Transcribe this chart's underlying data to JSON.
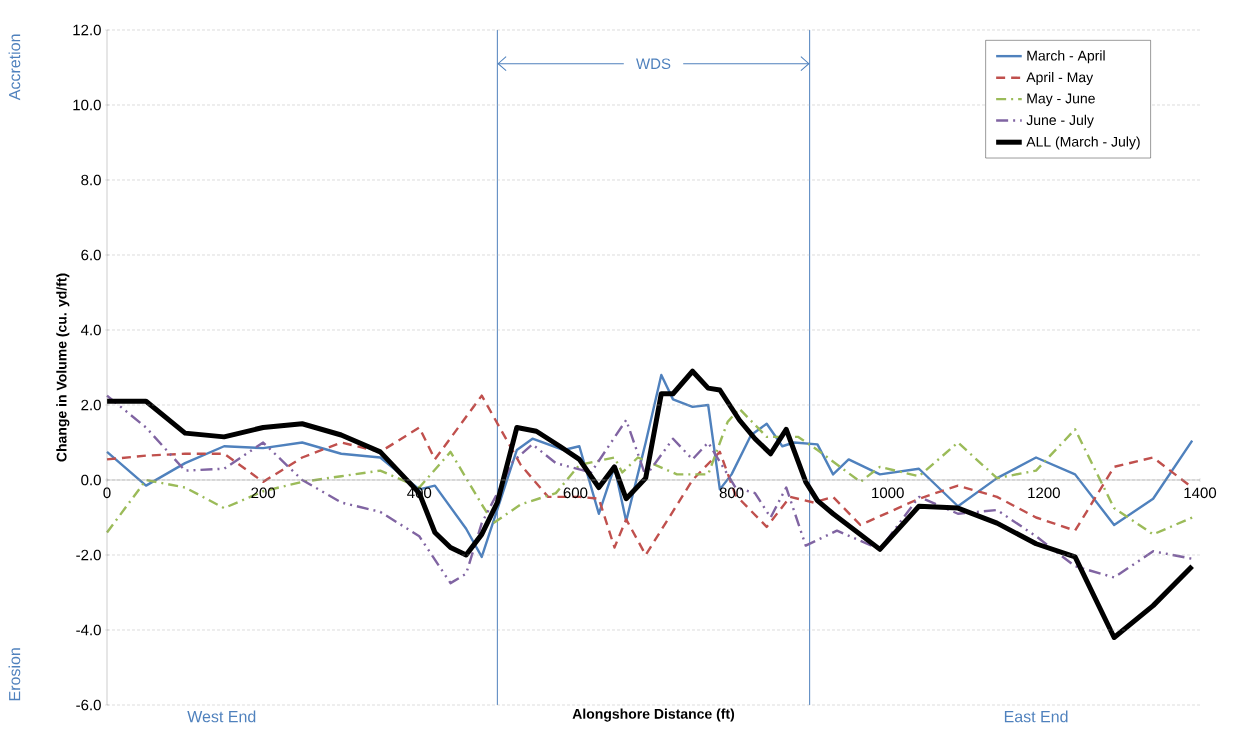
{
  "chart_data": {
    "type": "line",
    "xlabel": "Alongshore Distance (ft)",
    "ylabel": "Change in Volume (cu. yd/ft)",
    "xlim": [
      0,
      1400
    ],
    "xticks": [
      0,
      200,
      400,
      600,
      800,
      1000,
      1200,
      1400
    ],
    "ylim": [
      -6,
      12
    ],
    "yticks": [
      {
        "value": -6,
        "label": "-6.0"
      },
      {
        "value": -4,
        "label": "-4.0"
      },
      {
        "value": -2,
        "label": "-2.0"
      },
      {
        "value": 0,
        "label": "0.0"
      },
      {
        "value": 2,
        "label": "2.0"
      },
      {
        "value": 4,
        "label": "4.0"
      },
      {
        "value": 6,
        "label": "6.0"
      },
      {
        "value": 8,
        "label": "8.0"
      },
      {
        "value": 10,
        "label": "10.0"
      },
      {
        "value": 12,
        "label": "12.0"
      }
    ],
    "grid": "y",
    "legend": "top right",
    "marker": "none",
    "series": [
      {
        "name": "March - April",
        "color": "#4f81bd",
        "line_style": "solid",
        "x": [
          0,
          50,
          100,
          150,
          200,
          250,
          300,
          350,
          400,
          420,
          460,
          480,
          525,
          545,
          585,
          605,
          630,
          650,
          665,
          690,
          710,
          725,
          750,
          770,
          785,
          800,
          825,
          845,
          865,
          880,
          910,
          930,
          950,
          990,
          1040,
          1090,
          1140,
          1190,
          1240,
          1290,
          1340,
          1390
        ],
        "values": [
          0.75,
          -0.15,
          0.45,
          0.9,
          0.85,
          1.0,
          0.7,
          0.6,
          -0.25,
          -0.15,
          -1.3,
          -2.05,
          0.8,
          1.1,
          0.8,
          0.9,
          -0.9,
          0.35,
          -1.1,
          1.0,
          2.8,
          2.15,
          1.95,
          2.0,
          -0.25,
          0.15,
          1.2,
          1.5,
          0.9,
          1.0,
          0.95,
          0.15,
          0.55,
          0.15,
          0.3,
          -0.7,
          0.05,
          0.6,
          0.15,
          -1.2,
          -0.5,
          1.05
        ]
      },
      {
        "name": "April - May",
        "color": "#c0504d",
        "line_style": "dashed",
        "x": [
          0,
          50,
          100,
          150,
          200,
          250,
          300,
          350,
          400,
          420,
          480,
          530,
          565,
          605,
          630,
          650,
          665,
          690,
          750,
          785,
          805,
          845,
          875,
          905,
          930,
          965,
          1040,
          1090,
          1140,
          1190,
          1240,
          1290,
          1340,
          1390
        ],
        "values": [
          0.55,
          0.65,
          0.7,
          0.7,
          -0.05,
          0.6,
          1.0,
          0.75,
          1.4,
          0.55,
          2.25,
          0.4,
          -0.45,
          -0.45,
          -0.5,
          -1.8,
          -1.05,
          -2.0,
          0.0,
          0.75,
          -0.4,
          -1.25,
          -0.45,
          -0.6,
          -0.45,
          -1.2,
          -0.5,
          -0.15,
          -0.45,
          -1.0,
          -1.35,
          0.35,
          0.6,
          -0.2
        ]
      },
      {
        "name": "May - June",
        "color": "#9bbb59",
        "line_style": "dashdot",
        "x": [
          0,
          50,
          100,
          150,
          200,
          250,
          300,
          350,
          400,
          440,
          480,
          495,
          530,
          575,
          605,
          650,
          660,
          680,
          730,
          770,
          795,
          810,
          845,
          885,
          910,
          965,
          990,
          1040,
          1090,
          1140,
          1190,
          1240,
          1290,
          1340,
          1390
        ],
        "values": [
          -1.4,
          0.0,
          -0.2,
          -0.75,
          -0.3,
          -0.05,
          0.1,
          0.25,
          -0.2,
          0.75,
          -0.65,
          -1.15,
          -0.65,
          -0.35,
          0.4,
          0.6,
          0.2,
          0.6,
          0.15,
          0.15,
          1.55,
          1.9,
          1.15,
          1.15,
          0.8,
          -0.05,
          0.35,
          0.1,
          1.0,
          0.05,
          0.25,
          1.35,
          -0.75,
          -1.45,
          -1.0
        ]
      },
      {
        "name": "June - July",
        "color": "#8064a2",
        "line_style": "dashdotdot",
        "x": [
          0,
          50,
          100,
          150,
          200,
          250,
          300,
          350,
          400,
          440,
          460,
          480,
          500,
          520,
          545,
          575,
          620,
          665,
          690,
          725,
          750,
          770,
          805,
          830,
          850,
          870,
          895,
          935,
          990,
          1040,
          1090,
          1140,
          1190,
          1240,
          1290,
          1340,
          1390
        ],
        "values": [
          2.25,
          1.4,
          0.25,
          0.3,
          1.0,
          0.0,
          -0.6,
          -0.85,
          -1.5,
          -2.75,
          -2.5,
          -1.15,
          -0.35,
          0.5,
          0.95,
          0.45,
          0.2,
          1.6,
          0.1,
          1.1,
          0.55,
          1.0,
          -0.2,
          -0.35,
          -1.0,
          -0.2,
          -1.75,
          -1.35,
          -1.85,
          -0.45,
          -0.9,
          -0.8,
          -1.5,
          -2.3,
          -2.6,
          -1.9,
          -2.1
        ]
      },
      {
        "name": "ALL (March - July)",
        "color": "#000000",
        "line_style": "solid",
        "x": [
          0,
          50,
          100,
          150,
          200,
          250,
          300,
          350,
          400,
          420,
          440,
          460,
          480,
          500,
          525,
          550,
          580,
          605,
          630,
          650,
          665,
          690,
          710,
          725,
          750,
          770,
          785,
          810,
          830,
          850,
          870,
          895,
          910,
          930,
          990,
          1040,
          1090,
          1140,
          1190,
          1240,
          1290,
          1340,
          1390
        ],
        "values": [
          2.1,
          2.1,
          1.25,
          1.15,
          1.4,
          1.5,
          1.2,
          0.75,
          -0.35,
          -1.4,
          -1.8,
          -2.0,
          -1.45,
          -0.6,
          1.4,
          1.3,
          0.9,
          0.55,
          -0.2,
          0.35,
          -0.5,
          0.05,
          2.3,
          2.3,
          2.9,
          2.45,
          2.4,
          1.6,
          1.1,
          0.7,
          1.35,
          -0.05,
          -0.55,
          -0.9,
          -1.85,
          -0.7,
          -0.75,
          -1.15,
          -1.7,
          -2.05,
          -4.2,
          -3.35,
          -2.3
        ]
      }
    ],
    "ref_lines": [
      {
        "axis": "x",
        "value": 500,
        "color": "#4f81bd"
      },
      {
        "axis": "x",
        "value": 900,
        "color": "#4f81bd"
      }
    ],
    "annotations": [
      "Accretion",
      "Erosion",
      "West End",
      "East End",
      {
        "text": "WDS",
        "x": 500,
        "y": 11.1
      }
    ]
  }
}
